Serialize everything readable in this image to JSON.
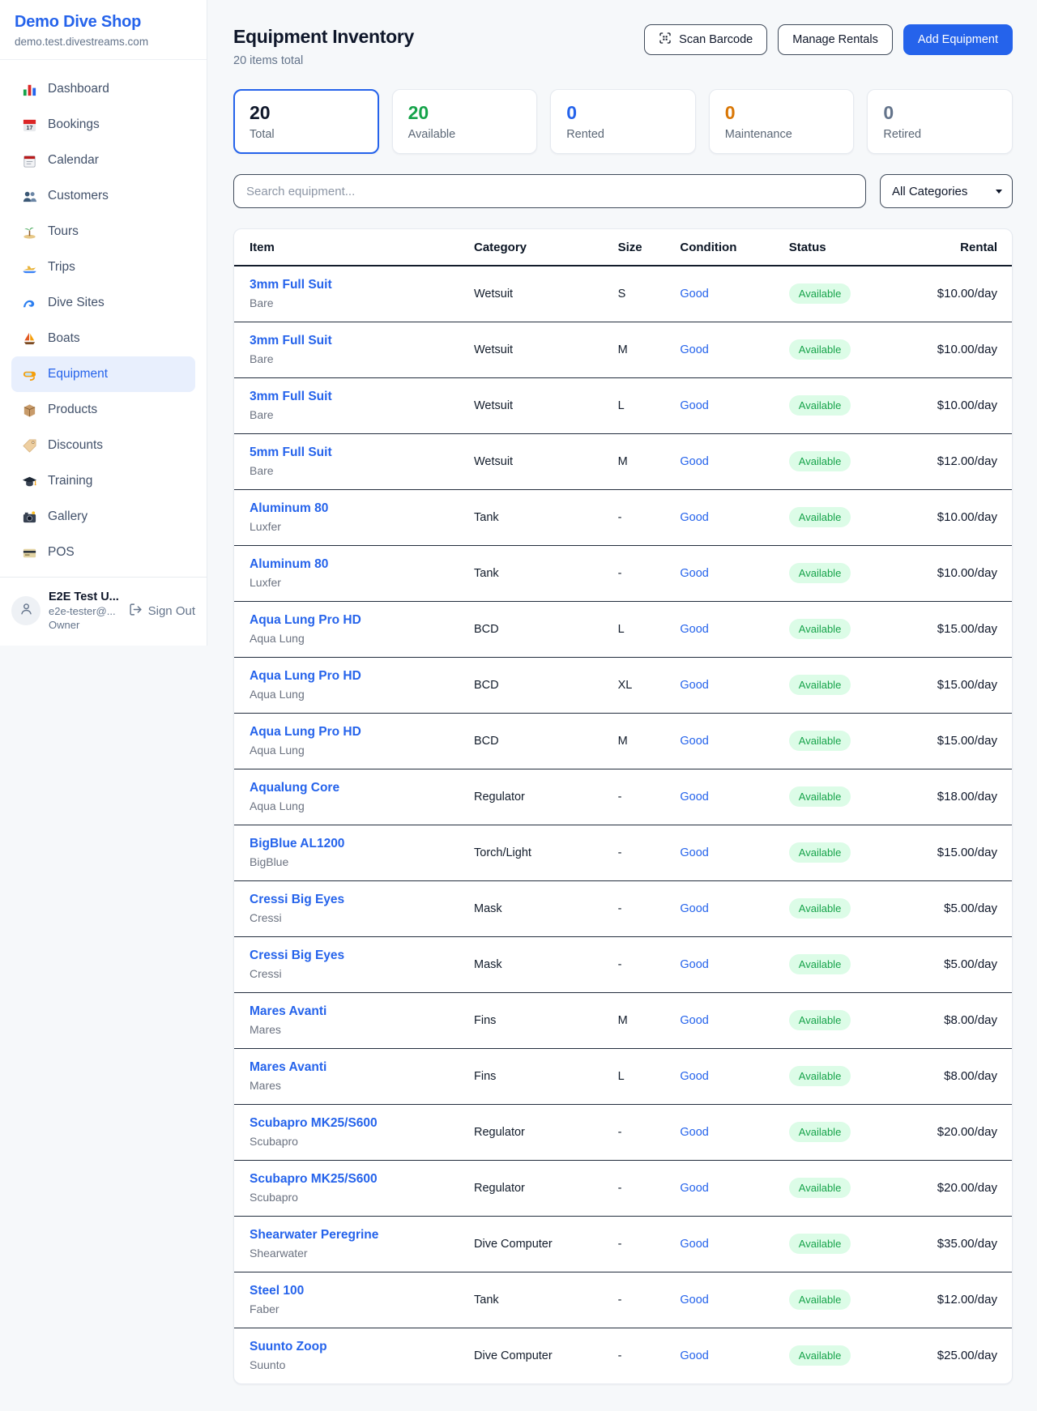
{
  "brand": {
    "name": "Demo Dive Shop",
    "domain": "demo.test.divestreams.com"
  },
  "sidebar": {
    "items": [
      {
        "label": "Dashboard",
        "icon": "bar-chart-icon",
        "active": false
      },
      {
        "label": "Bookings",
        "icon": "bookings-calendar-icon",
        "active": false
      },
      {
        "label": "Calendar",
        "icon": "calendar-icon",
        "active": false
      },
      {
        "label": "Customers",
        "icon": "users-icon",
        "active": false
      },
      {
        "label": "Tours",
        "icon": "island-icon",
        "active": false
      },
      {
        "label": "Trips",
        "icon": "speedboat-icon",
        "active": false
      },
      {
        "label": "Dive Sites",
        "icon": "wave-icon",
        "active": false
      },
      {
        "label": "Boats",
        "icon": "sailboat-icon",
        "active": false
      },
      {
        "label": "Equipment",
        "icon": "dive-mask-icon",
        "active": true
      },
      {
        "label": "Products",
        "icon": "package-icon",
        "active": false
      },
      {
        "label": "Discounts",
        "icon": "tag-icon",
        "active": false
      },
      {
        "label": "Training",
        "icon": "graduation-cap-icon",
        "active": false
      },
      {
        "label": "Gallery",
        "icon": "camera-icon",
        "active": false
      },
      {
        "label": "POS",
        "icon": "credit-card-icon",
        "active": false
      }
    ]
  },
  "user": {
    "name": "E2E Test U...",
    "email": "e2e-tester@...",
    "role": "Owner",
    "sign_out_label": "Sign Out"
  },
  "header": {
    "title": "Equipment Inventory",
    "subtitle": "20 items total",
    "scan_button": "Scan Barcode",
    "manage_button": "Manage Rentals",
    "add_button": "Add Equipment"
  },
  "stats": [
    {
      "value": "20",
      "label": "Total",
      "color": "#0f172a",
      "active": true
    },
    {
      "value": "20",
      "label": "Available",
      "color": "#16a34a",
      "active": false
    },
    {
      "value": "0",
      "label": "Rented",
      "color": "#2563eb",
      "active": false
    },
    {
      "value": "0",
      "label": "Maintenance",
      "color": "#d97706",
      "active": false
    },
    {
      "value": "0",
      "label": "Retired",
      "color": "#64748b",
      "active": false
    }
  ],
  "filters": {
    "search_placeholder": "Search equipment...",
    "category_selected": "All Categories"
  },
  "table": {
    "columns": [
      "Item",
      "Category",
      "Size",
      "Condition",
      "Status",
      "Rental"
    ],
    "rows": [
      {
        "name": "3mm Full Suit",
        "brand": "Bare",
        "category": "Wetsuit",
        "size": "S",
        "condition": "Good",
        "status": "Available",
        "rental": "$10.00/day"
      },
      {
        "name": "3mm Full Suit",
        "brand": "Bare",
        "category": "Wetsuit",
        "size": "M",
        "condition": "Good",
        "status": "Available",
        "rental": "$10.00/day"
      },
      {
        "name": "3mm Full Suit",
        "brand": "Bare",
        "category": "Wetsuit",
        "size": "L",
        "condition": "Good",
        "status": "Available",
        "rental": "$10.00/day"
      },
      {
        "name": "5mm Full Suit",
        "brand": "Bare",
        "category": "Wetsuit",
        "size": "M",
        "condition": "Good",
        "status": "Available",
        "rental": "$12.00/day"
      },
      {
        "name": "Aluminum 80",
        "brand": "Luxfer",
        "category": "Tank",
        "size": "-",
        "condition": "Good",
        "status": "Available",
        "rental": "$10.00/day"
      },
      {
        "name": "Aluminum 80",
        "brand": "Luxfer",
        "category": "Tank",
        "size": "-",
        "condition": "Good",
        "status": "Available",
        "rental": "$10.00/day"
      },
      {
        "name": "Aqua Lung Pro HD",
        "brand": "Aqua Lung",
        "category": "BCD",
        "size": "L",
        "condition": "Good",
        "status": "Available",
        "rental": "$15.00/day"
      },
      {
        "name": "Aqua Lung Pro HD",
        "brand": "Aqua Lung",
        "category": "BCD",
        "size": "XL",
        "condition": "Good",
        "status": "Available",
        "rental": "$15.00/day"
      },
      {
        "name": "Aqua Lung Pro HD",
        "brand": "Aqua Lung",
        "category": "BCD",
        "size": "M",
        "condition": "Good",
        "status": "Available",
        "rental": "$15.00/day"
      },
      {
        "name": "Aqualung Core",
        "brand": "Aqua Lung",
        "category": "Regulator",
        "size": "-",
        "condition": "Good",
        "status": "Available",
        "rental": "$18.00/day"
      },
      {
        "name": "BigBlue AL1200",
        "brand": "BigBlue",
        "category": "Torch/Light",
        "size": "-",
        "condition": "Good",
        "status": "Available",
        "rental": "$15.00/day"
      },
      {
        "name": "Cressi Big Eyes",
        "brand": "Cressi",
        "category": "Mask",
        "size": "-",
        "condition": "Good",
        "status": "Available",
        "rental": "$5.00/day"
      },
      {
        "name": "Cressi Big Eyes",
        "brand": "Cressi",
        "category": "Mask",
        "size": "-",
        "condition": "Good",
        "status": "Available",
        "rental": "$5.00/day"
      },
      {
        "name": "Mares Avanti",
        "brand": "Mares",
        "category": "Fins",
        "size": "M",
        "condition": "Good",
        "status": "Available",
        "rental": "$8.00/day"
      },
      {
        "name": "Mares Avanti",
        "brand": "Mares",
        "category": "Fins",
        "size": "L",
        "condition": "Good",
        "status": "Available",
        "rental": "$8.00/day"
      },
      {
        "name": "Scubapro MK25/S600",
        "brand": "Scubapro",
        "category": "Regulator",
        "size": "-",
        "condition": "Good",
        "status": "Available",
        "rental": "$20.00/day"
      },
      {
        "name": "Scubapro MK25/S600",
        "brand": "Scubapro",
        "category": "Regulator",
        "size": "-",
        "condition": "Good",
        "status": "Available",
        "rental": "$20.00/day"
      },
      {
        "name": "Shearwater Peregrine",
        "brand": "Shearwater",
        "category": "Dive Computer",
        "size": "-",
        "condition": "Good",
        "status": "Available",
        "rental": "$35.00/day"
      },
      {
        "name": "Steel 100",
        "brand": "Faber",
        "category": "Tank",
        "size": "-",
        "condition": "Good",
        "status": "Available",
        "rental": "$12.00/day"
      },
      {
        "name": "Suunto Zoop",
        "brand": "Suunto",
        "category": "Dive Computer",
        "size": "-",
        "condition": "Good",
        "status": "Available",
        "rental": "$25.00/day"
      }
    ]
  },
  "colors": {
    "accent": "#2563eb",
    "available_text": "#16a34a",
    "available_bg": "#dcfce7",
    "maintenance": "#d97706",
    "muted": "#64748b"
  }
}
